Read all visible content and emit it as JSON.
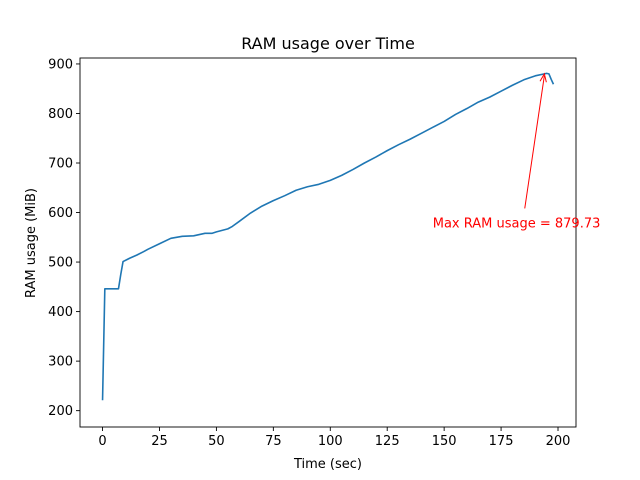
{
  "chart_data": {
    "type": "line",
    "title": "RAM usage over Time",
    "xlabel": "Time (sec)",
    "ylabel": "RAM usage (MiB)",
    "xlim": [
      -9.9,
      207.9
    ],
    "ylim": [
      167,
      912
    ],
    "xticks": [
      0,
      25,
      50,
      75,
      100,
      125,
      150,
      175,
      200
    ],
    "yticks": [
      200,
      300,
      400,
      500,
      600,
      700,
      800,
      900
    ],
    "grid": false,
    "series": [
      {
        "color": "#1f77b4",
        "x": [
          0,
          1,
          2,
          3,
          5,
          7,
          8,
          9,
          12,
          15,
          18,
          20,
          25,
          30,
          35,
          40,
          42,
          45,
          48,
          50,
          55,
          57,
          60,
          65,
          70,
          75,
          80,
          85,
          90,
          95,
          100,
          105,
          110,
          115,
          120,
          125,
          130,
          135,
          140,
          145,
          150,
          155,
          160,
          165,
          170,
          175,
          180,
          185,
          190,
          194,
          195,
          196,
          197,
          198
        ],
        "y": [
          221,
          446,
          446,
          446,
          446,
          446,
          475,
          501,
          508,
          514,
          521,
          526,
          537,
          548,
          552,
          553,
          555,
          558,
          558,
          561,
          567,
          572,
          582,
          599,
          613,
          624,
          634,
          645,
          652,
          657,
          665,
          675,
          687,
          700,
          712,
          725,
          737,
          748,
          760,
          772,
          784,
          798,
          810,
          823,
          833,
          845,
          857,
          868,
          876,
          880,
          881,
          880,
          869,
          859
        ]
      }
    ],
    "annotation": {
      "text": "Max RAM usage = 879.73",
      "color": "#ff0000",
      "point": [
        194,
        880
      ],
      "text_anchor": [
        145,
        580
      ]
    }
  }
}
